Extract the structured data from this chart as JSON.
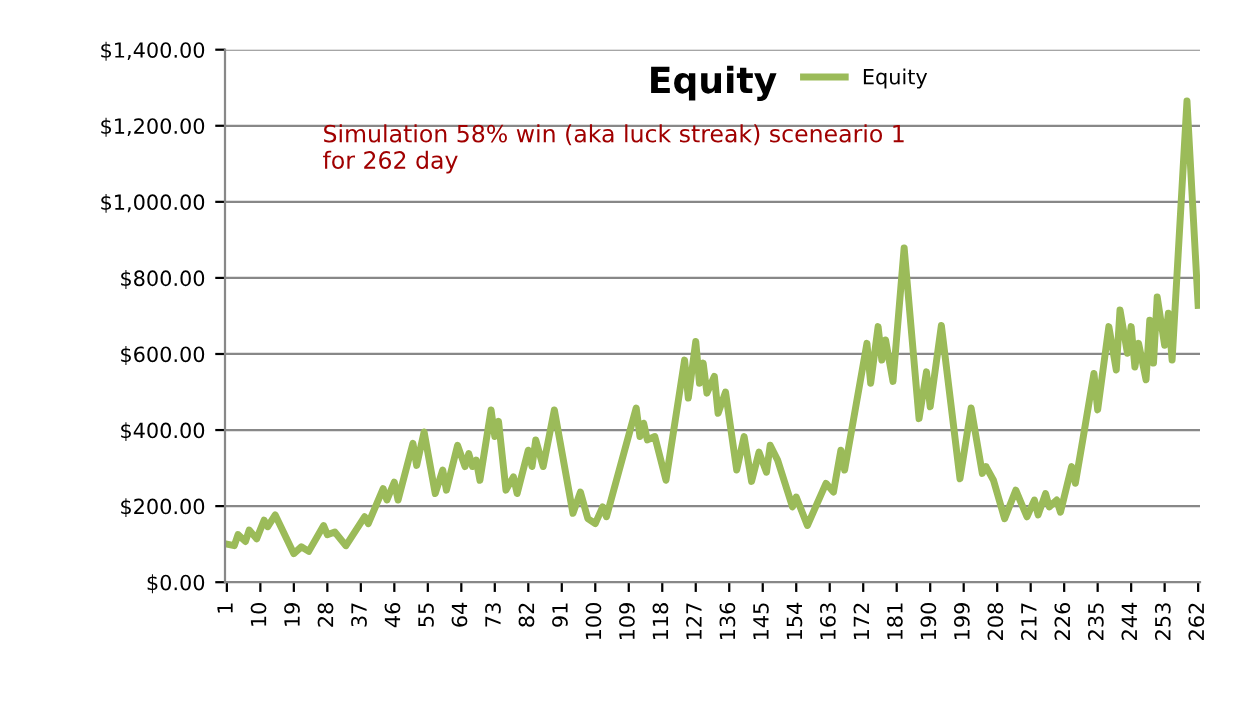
{
  "chart_data": {
    "type": "line",
    "title": "Equity",
    "annotations": [
      "Simulation 58% win (aka luck streak) sceneario 1\nfor 262 day"
    ],
    "series": [
      {
        "name": "Equity",
        "color": "#9bbb59",
        "x": [
          1,
          3,
          4,
          6,
          7,
          9,
          11,
          12,
          14,
          19,
          21,
          23,
          27,
          28,
          30,
          33,
          38,
          39,
          43,
          44,
          46,
          47,
          51,
          52,
          54,
          57,
          59,
          60,
          63,
          65,
          66,
          67,
          68,
          69,
          72,
          73,
          74,
          76,
          78,
          79,
          82,
          83,
          84,
          86,
          89,
          94,
          96,
          98,
          100,
          102,
          103,
          111,
          112,
          113,
          114,
          116,
          119,
          124,
          125,
          127,
          128,
          129,
          130,
          132,
          133,
          135,
          138,
          140,
          142,
          144,
          146,
          147,
          149,
          153,
          154,
          157,
          162,
          164,
          166,
          167,
          173,
          174,
          176,
          177,
          178,
          180,
          183,
          187,
          189,
          190,
          193,
          198,
          201,
          204,
          205,
          207,
          210,
          213,
          216,
          218,
          219,
          221,
          222,
          224,
          225,
          228,
          229,
          231,
          234,
          235,
          238,
          240,
          241,
          243,
          244,
          245,
          246,
          248,
          249,
          250,
          251,
          253,
          254,
          255,
          259,
          262
        ],
        "values": [
          100,
          96,
          125,
          107,
          137,
          114,
          163,
          146,
          177,
          75,
          93,
          81,
          149,
          125,
          132,
          96,
          172,
          154,
          246,
          216,
          263,
          216,
          365,
          307,
          395,
          233,
          295,
          242,
          360,
          304,
          338,
          304,
          321,
          268,
          453,
          383,
          423,
          242,
          277,
          233,
          347,
          304,
          374,
          304,
          453,
          181,
          237,
          167,
          154,
          198,
          172,
          458,
          383,
          418,
          374,
          383,
          268,
          584,
          484,
          633,
          523,
          576,
          497,
          541,
          444,
          500,
          295,
          383,
          265,
          342,
          289,
          360,
          321,
          198,
          224,
          149,
          260,
          237,
          347,
          295,
          628,
          523,
          672,
          584,
          637,
          528,
          879,
          430,
          553,
          461,
          675,
          272,
          458,
          286,
          304,
          268,
          167,
          242,
          172,
          216,
          177,
          233,
          198,
          216,
          184,
          304,
          260,
          374,
          549,
          453,
          672,
          558,
          716,
          602,
          672,
          566,
          628,
          532,
          689,
          576,
          750,
          623,
          707,
          584,
          1265,
          728
        ]
      }
    ],
    "xlim": [
      0.5,
      262.5
    ],
    "xticks": [
      1,
      10,
      19,
      28,
      37,
      46,
      55,
      64,
      73,
      82,
      91,
      100,
      109,
      118,
      127,
      136,
      145,
      154,
      163,
      172,
      181,
      190,
      199,
      208,
      217,
      226,
      235,
      244,
      253,
      262
    ],
    "ylim": [
      0,
      1400
    ],
    "yticks": [
      {
        "value": 0,
        "label": "$0.00"
      },
      {
        "value": 200,
        "label": "$200.00"
      },
      {
        "value": 400,
        "label": "$400.00"
      },
      {
        "value": 600,
        "label": "$600.00"
      },
      {
        "value": 800,
        "label": "$800.00"
      },
      {
        "value": 1000,
        "label": "$1,000.00"
      },
      {
        "value": 1200,
        "label": "$1,200.00"
      },
      {
        "value": 1400,
        "label": "$1,400.00"
      }
    ],
    "grid": "y",
    "legend": "top right",
    "marker": "none",
    "line_style": "solid"
  }
}
